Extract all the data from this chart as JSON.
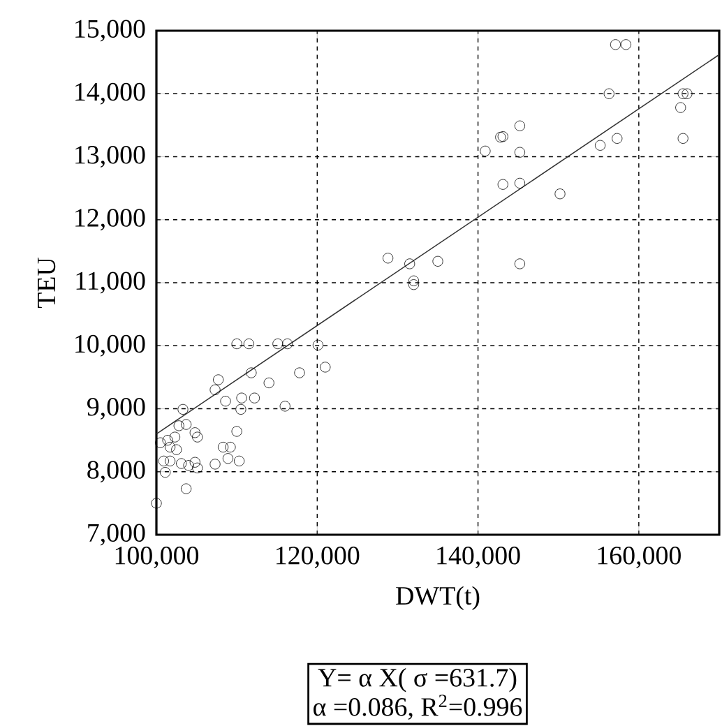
{
  "chart_data": {
    "type": "scatter",
    "xlabel": "DWT(t)",
    "ylabel": "TEU",
    "xlim": [
      100000,
      170000
    ],
    "ylim": [
      7000,
      15000
    ],
    "xticks": [
      {
        "value": 100000,
        "label": "100,000"
      },
      {
        "value": 120000,
        "label": "120,000"
      },
      {
        "value": 140000,
        "label": "140,000"
      },
      {
        "value": 160000,
        "label": "160,000"
      }
    ],
    "yticks": [
      {
        "value": 7000,
        "label": "7,000"
      },
      {
        "value": 8000,
        "label": "8,000"
      },
      {
        "value": 9000,
        "label": "9,000"
      },
      {
        "value": 10000,
        "label": "10,000"
      },
      {
        "value": 11000,
        "label": "11,000"
      },
      {
        "value": 12000,
        "label": "12,000"
      },
      {
        "value": 13000,
        "label": "13,000"
      },
      {
        "value": 14000,
        "label": "14,000"
      },
      {
        "value": 15000,
        "label": "15,000"
      }
    ],
    "grid": true,
    "marker": "circle",
    "annotations": [
      "Y= α X( σ =631.7)",
      "α =0.086, R$^{2}$=0.996"
    ],
    "series": [
      {
        "color": "#000000",
        "x": [
          100000,
          103700,
          101100,
          100900,
          101700,
          103100,
          104000,
          105100,
          104800,
          107300,
          108900,
          110300,
          109200,
          108300,
          110000,
          100500,
          101400,
          102300,
          101700,
          102500,
          104800,
          105100,
          102800,
          103700,
          103300,
          108600,
          110500,
          110600,
          112200,
          116000,
          107300,
          107700,
          111800,
          114000,
          117800,
          121000,
          110000,
          111500,
          115100,
          116300,
          120100,
          128800,
          131500,
          132000,
          132000,
          135000,
          140900,
          142800,
          143100,
          145200,
          145200,
          143100,
          145200,
          150200,
          145200,
          155200,
          157300,
          156300,
          157100,
          158400,
          165500,
          166000,
          165200,
          165500
        ],
        "values": [
          7500,
          7730,
          7990,
          8170,
          8170,
          8130,
          8100,
          8060,
          8150,
          8120,
          8210,
          8170,
          8390,
          8390,
          8640,
          8460,
          8500,
          8550,
          8390,
          8350,
          8620,
          8550,
          8730,
          8750,
          8990,
          9120,
          8990,
          9170,
          9170,
          9040,
          9300,
          9460,
          9570,
          9410,
          9570,
          9660,
          10030,
          10030,
          10030,
          10030,
          10010,
          11390,
          11300,
          11030,
          10970,
          11340,
          13090,
          13310,
          13320,
          13490,
          13070,
          12560,
          12580,
          12410,
          11300,
          13180,
          13290,
          14000,
          14780,
          14780,
          14000,
          14000,
          13780,
          13290
        ]
      },
      {
        "type": "line",
        "color": "#333333",
        "marker": "none",
        "x": [
          100000,
          170000
        ],
        "values": [
          8600,
          14620
        ]
      }
    ]
  }
}
